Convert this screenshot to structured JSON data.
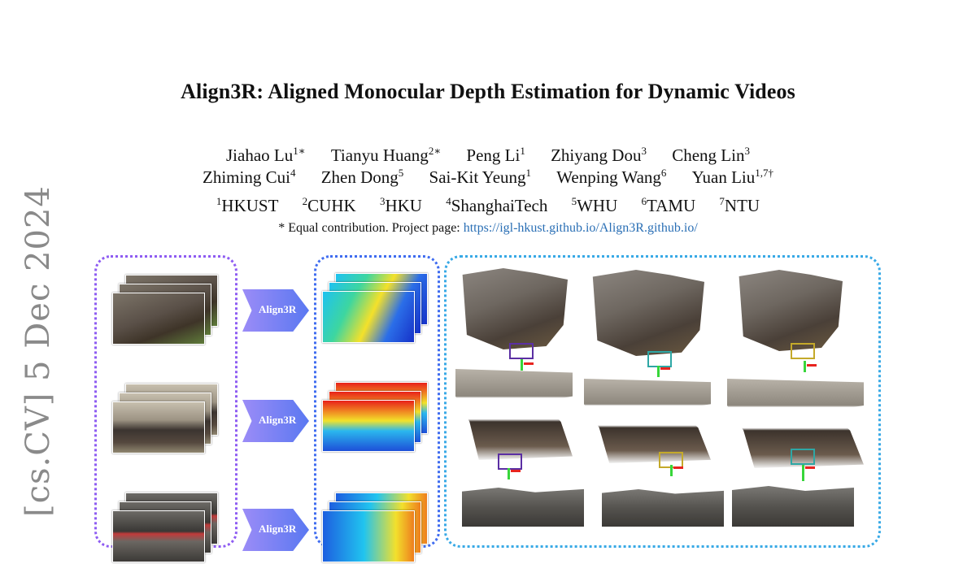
{
  "arxiv_stamp": "[cs.CV]  5 Dec 2024",
  "title": "Align3R: Aligned Monocular Depth Estimation for Dynamic Videos",
  "authors_line1": [
    {
      "name": "Jiahao Lu",
      "sup": "1∗"
    },
    {
      "name": "Tianyu Huang",
      "sup": "2∗"
    },
    {
      "name": "Peng Li",
      "sup": "1"
    },
    {
      "name": "Zhiyang Dou",
      "sup": "3"
    },
    {
      "name": "Cheng Lin",
      "sup": "3"
    }
  ],
  "authors_line2": [
    {
      "name": "Zhiming Cui",
      "sup": "4"
    },
    {
      "name": "Zhen Dong",
      "sup": "5"
    },
    {
      "name": "Sai-Kit Yeung",
      "sup": "1"
    },
    {
      "name": "Wenping Wang",
      "sup": "6"
    },
    {
      "name": "Yuan Liu",
      "sup": "1,7†"
    }
  ],
  "affiliations": [
    {
      "sup": "1",
      "name": "HKUST"
    },
    {
      "sup": "2",
      "name": "CUHK"
    },
    {
      "sup": "3",
      "name": "HKU"
    },
    {
      "sup": "4",
      "name": "ShanghaiTech"
    },
    {
      "sup": "5",
      "name": "WHU"
    },
    {
      "sup": "6",
      "name": "TAMU"
    },
    {
      "sup": "7",
      "name": "NTU"
    }
  ],
  "note": {
    "prefix": "* Equal contribution. Project page: ",
    "link": "https://igl-hkust.github.io/Align3R.github.io/"
  },
  "figure": {
    "arrow_label": "Align3R",
    "colors": {
      "input_border": "#8e5cf2",
      "depth_border": "#3f6cf0",
      "points_border": "#38a9e6",
      "link": "#2a6fb5"
    }
  }
}
